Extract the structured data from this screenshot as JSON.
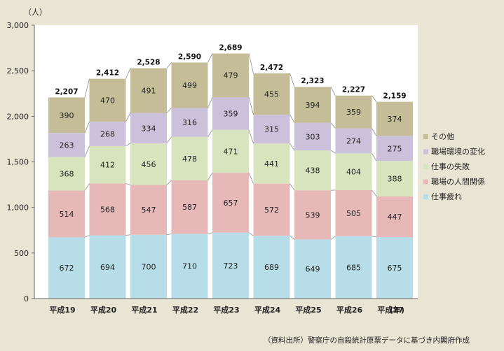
{
  "chart_data": {
    "type": "bar",
    "stacked": true,
    "unit_label": "（人）",
    "x_unit_label": "(年)",
    "source_note": "（資料出所）警察庁の自殺統計原票データに基づき内閣府作成",
    "categories": [
      "平成19",
      "平成20",
      "平成21",
      "平成22",
      "平成23",
      "平成24",
      "平成25",
      "平成26",
      "平成27"
    ],
    "ylim": [
      0,
      3000
    ],
    "yticks": [
      0,
      500,
      1000,
      1500,
      2000,
      2500,
      3000
    ],
    "ytick_labels": [
      "0",
      "500",
      "1,000",
      "1,500",
      "2,000",
      "2,500",
      "3,000"
    ],
    "grid": false,
    "legend_position": "right",
    "series": [
      {
        "name": "仕事疲れ",
        "color": "#b7dde8",
        "values": [
          672,
          694,
          700,
          710,
          723,
          689,
          649,
          685,
          675
        ]
      },
      {
        "name": "職場の人間関係",
        "color": "#e6b9b8",
        "values": [
          514,
          568,
          547,
          587,
          657,
          572,
          539,
          505,
          447
        ]
      },
      {
        "name": "仕事の失敗",
        "color": "#d7e4bd",
        "values": [
          368,
          412,
          456,
          478,
          471,
          441,
          438,
          404,
          388
        ]
      },
      {
        "name": "職場環境の変化",
        "color": "#ccc1da",
        "values": [
          263,
          268,
          334,
          316,
          359,
          315,
          303,
          274,
          275
        ]
      },
      {
        "name": "その他",
        "color": "#c4bd97",
        "values": [
          390,
          470,
          491,
          499,
          479,
          455,
          394,
          359,
          374
        ]
      }
    ],
    "totals": [
      2207,
      2412,
      2528,
      2590,
      2689,
      2472,
      2323,
      2227,
      2159
    ],
    "total_labels": [
      "2,207",
      "2,412",
      "2,528",
      "2,590",
      "2,689",
      "2,472",
      "2,323",
      "2,227",
      "2,159"
    ]
  }
}
